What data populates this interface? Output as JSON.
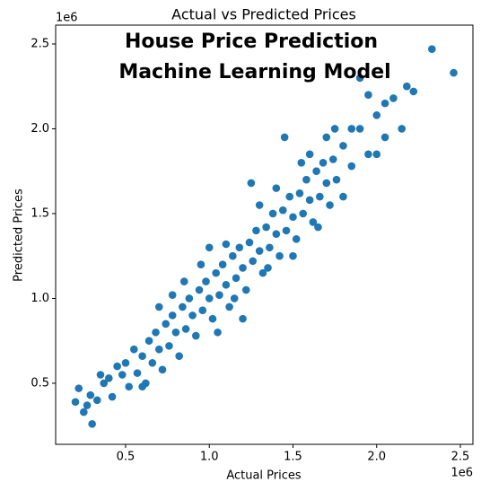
{
  "chart_data": {
    "type": "scatter",
    "title": "Actual vs Predicted Prices",
    "annotations": [
      "House Price Prediction",
      "Machine Learning Model"
    ],
    "x_label": "Actual Prices",
    "y_label": "Predicted Prices",
    "x_offset_label": "1e6",
    "y_offset_label": "1e6",
    "color": "#1f77b4",
    "xlim": [
      0.082,
      2.575
    ],
    "ylim": [
      0.14,
      2.611
    ],
    "xticks": [
      0.5,
      {
        "value": 1,
        "label": "1.0"
      },
      1.5,
      {
        "value": 2,
        "label": "2.0"
      },
      2.5
    ],
    "yticks": [
      0.5,
      {
        "value": 1,
        "label": "1.0"
      },
      1.5,
      {
        "value": 2,
        "label": "2.0"
      },
      2.5
    ],
    "x": [
      0.2,
      0.22,
      0.25,
      0.27,
      0.29,
      0.3,
      0.35,
      0.37,
      0.4,
      0.42,
      0.45,
      0.48,
      0.5,
      0.52,
      0.55,
      0.57,
      0.6,
      0.62,
      0.64,
      0.66,
      0.68,
      0.7,
      0.72,
      0.74,
      0.76,
      0.78,
      0.8,
      0.82,
      0.84,
      0.86,
      0.88,
      0.9,
      0.92,
      0.94,
      0.96,
      0.98,
      1.0,
      1.02,
      1.04,
      1.06,
      1.08,
      1.1,
      1.12,
      1.14,
      1.16,
      1.18,
      1.2,
      1.22,
      1.24,
      1.26,
      1.28,
      1.3,
      1.32,
      1.34,
      1.36,
      1.38,
      1.4,
      1.42,
      1.44,
      1.46,
      1.48,
      1.5,
      1.52,
      1.54,
      1.56,
      1.58,
      1.6,
      1.62,
      1.64,
      1.66,
      1.68,
      1.7,
      1.72,
      1.74,
      1.76,
      1.8,
      1.85,
      1.9,
      1.95,
      2.0,
      2.05,
      2.1,
      2.15,
      2.18,
      2.22,
      2.33,
      2.46,
      1.45,
      1.25,
      0.78,
      1.2,
      1.35,
      1.1,
      0.95,
      1.5,
      1.6,
      0.7,
      1.3,
      1.0,
      1.15,
      1.4,
      1.55,
      1.05,
      0.85,
      1.65,
      1.75,
      1.85,
      0.6,
      0.33,
      1.9,
      1.95,
      2.05,
      1.7,
      1.8,
      2.0
    ],
    "y": [
      0.39,
      0.47,
      0.33,
      0.37,
      0.43,
      0.26,
      0.55,
      0.5,
      0.53,
      0.42,
      0.6,
      0.55,
      0.62,
      0.48,
      0.7,
      0.56,
      0.66,
      0.5,
      0.75,
      0.62,
      0.8,
      0.7,
      0.58,
      0.85,
      0.72,
      0.9,
      0.8,
      0.66,
      0.95,
      0.82,
      1.0,
      0.9,
      0.78,
      1.05,
      0.93,
      1.1,
      1.0,
      0.88,
      1.15,
      1.02,
      1.2,
      1.08,
      0.95,
      1.25,
      1.12,
      1.3,
      1.18,
      1.05,
      1.33,
      1.22,
      1.4,
      1.28,
      1.15,
      1.42,
      1.3,
      1.5,
      1.38,
      1.25,
      1.52,
      1.4,
      1.6,
      1.48,
      1.35,
      1.62,
      1.5,
      1.7,
      1.58,
      1.45,
      1.75,
      1.6,
      1.8,
      1.68,
      1.55,
      1.82,
      1.7,
      1.9,
      1.78,
      2.0,
      1.85,
      2.08,
      1.95,
      2.18,
      2.0,
      2.25,
      2.22,
      2.47,
      2.33,
      1.95,
      1.68,
      1.02,
      0.88,
      1.18,
      1.32,
      1.2,
      1.25,
      1.85,
      0.95,
      1.55,
      1.3,
      1.0,
      1.65,
      1.8,
      0.8,
      1.1,
      1.42,
      2.0,
      2.0,
      0.48,
      0.4,
      2.3,
      2.2,
      2.15,
      1.95,
      1.6,
      1.85
    ]
  }
}
